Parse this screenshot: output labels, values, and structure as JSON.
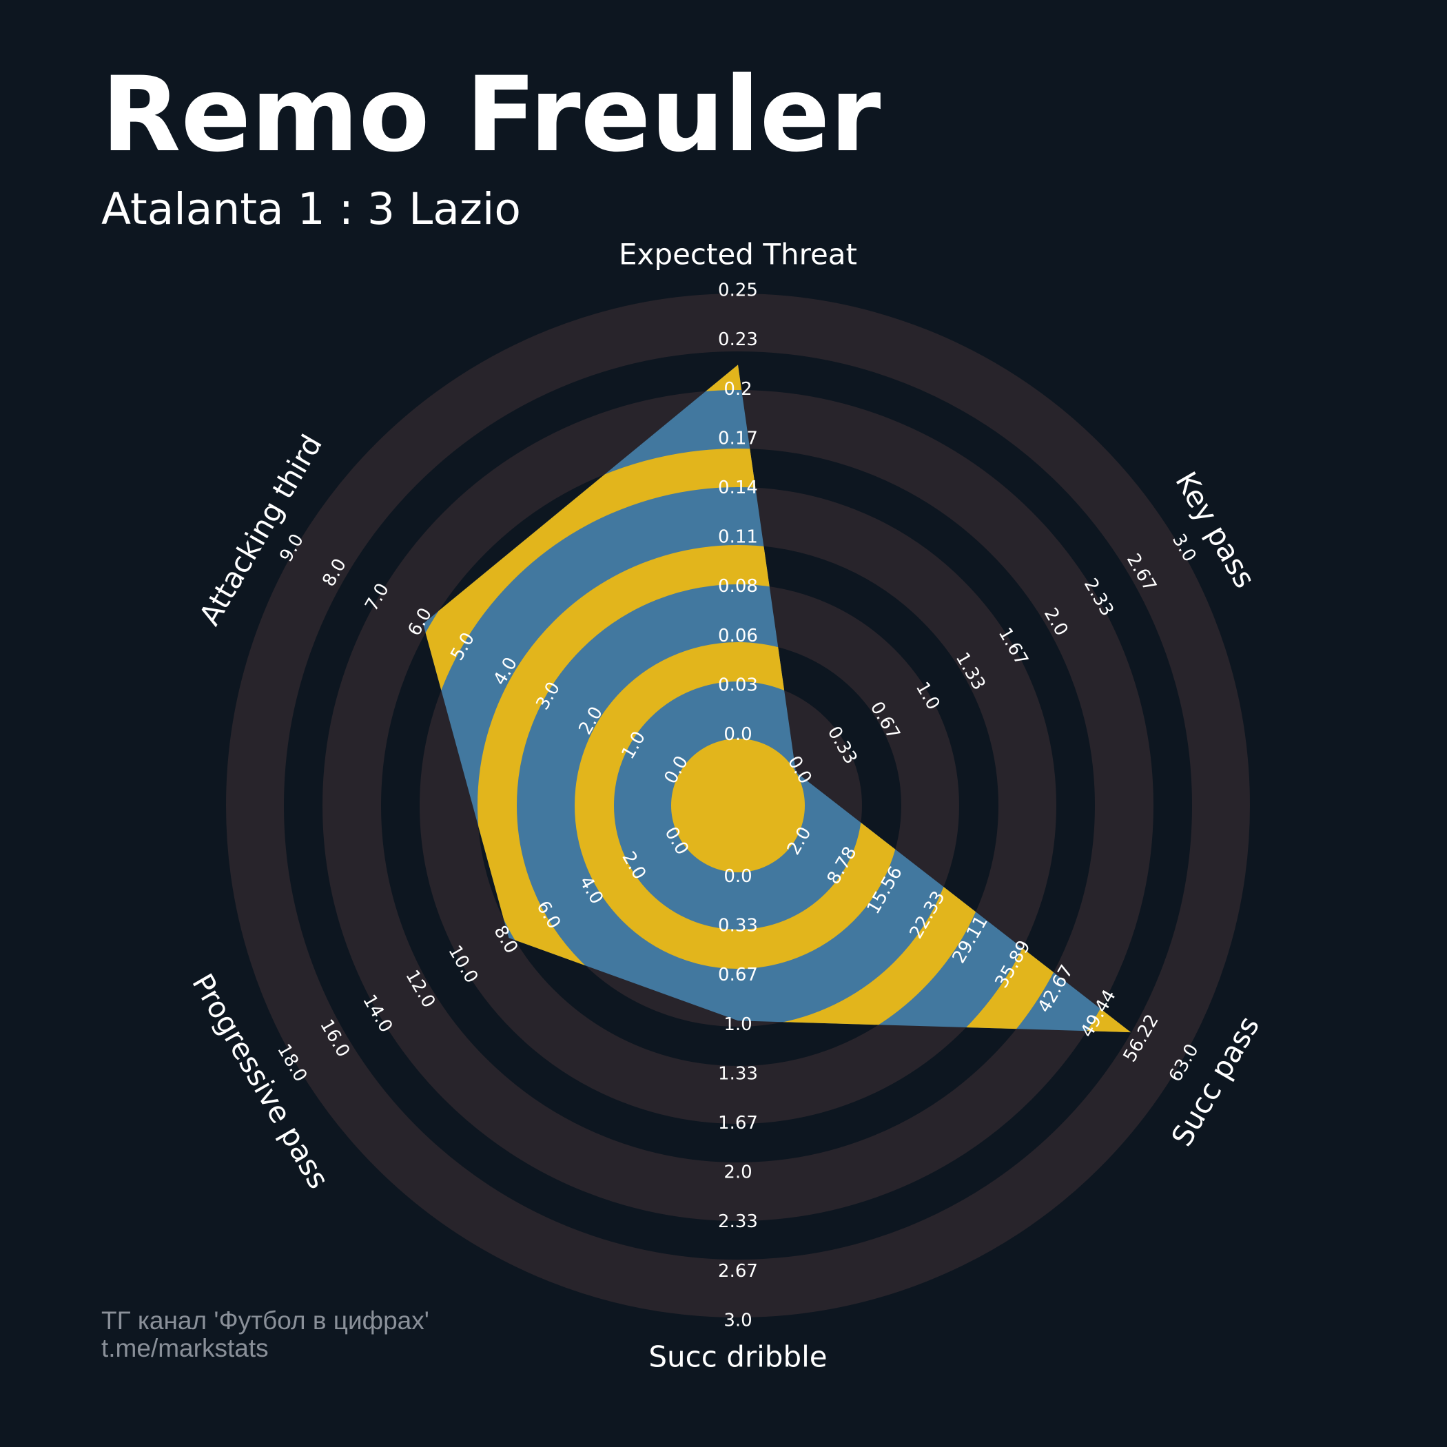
{
  "header": {
    "title": "Remo Freuler",
    "subtitle": "Atalanta 1 : 3 Lazio"
  },
  "footer": {
    "line1": "ТГ канал 'Футбол в цифрах'",
    "line2": "t.me/markstats"
  },
  "colors": {
    "background": "#0d1620",
    "ring": "#28242b",
    "radar_fill": "#42789f",
    "radar_stripe": "#e2b51c",
    "text": "#ffffff",
    "footer_text": "#8a9099"
  },
  "chart_data": {
    "type": "radar",
    "title": "Remo Freuler",
    "subtitle": "Atalanta 1 : 3 Lazio",
    "axes": [
      {
        "label": "Expected Threat",
        "min": 0.0,
        "max": 0.25,
        "value": 0.21,
        "ticks": [
          "0.0",
          "0.03",
          "0.06",
          "0.08",
          "0.11",
          "0.14",
          "0.17",
          "0.2",
          "0.23",
          "0.25"
        ]
      },
      {
        "label": "Key pass",
        "min": 0.0,
        "max": 3.0,
        "value": 0,
        "ticks": [
          "0.0",
          "0.33",
          "0.67",
          "1.0",
          "1.33",
          "1.67",
          "2.0",
          "2.33",
          "2.67",
          "3.0"
        ]
      },
      {
        "label": "Succ pass",
        "min": 2.0,
        "max": 63.0,
        "value": 55,
        "ticks": [
          "2.0",
          "8.78",
          "15.56",
          "22.33",
          "29.11",
          "35.89",
          "42.67",
          "49.44",
          "56.22",
          "63.0"
        ]
      },
      {
        "label": "Succ dribble",
        "min": 0.0,
        "max": 3.0,
        "value": 1,
        "ticks": [
          "0.0",
          "0.33",
          "0.67",
          "1.0",
          "1.33",
          "1.67",
          "2.0",
          "2.33",
          "2.67",
          "3.0"
        ]
      },
      {
        "label": "Progressive pass",
        "min": 0.0,
        "max": 18.0,
        "value": 8,
        "ticks": [
          "0.0",
          "2.0",
          "4.0",
          "6.0",
          "8.0",
          "10.0",
          "12.0",
          "14.0",
          "16.0",
          "18.0"
        ]
      },
      {
        "label": "Attacking third",
        "min": 0.0,
        "max": 9.0,
        "value": 6,
        "ticks": [
          "0.0",
          "1.0",
          "2.0",
          "3.0",
          "4.0",
          "5.0",
          "6.0",
          "7.0",
          "8.0",
          "9.0"
        ]
      }
    ],
    "num_rings": 4,
    "grid": true
  }
}
